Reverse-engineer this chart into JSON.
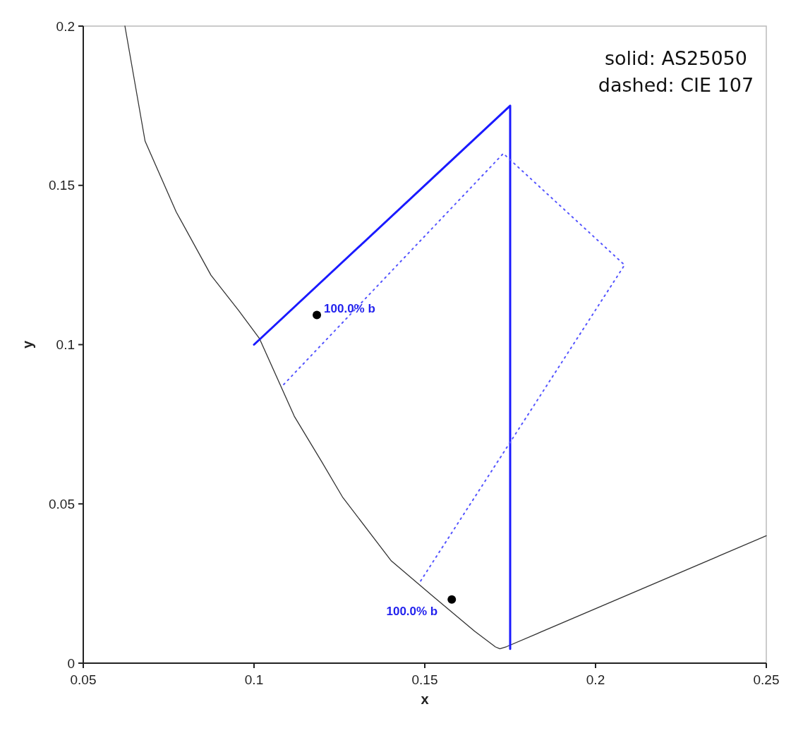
{
  "chart_data": {
    "type": "line",
    "xlabel": "x",
    "ylabel": "y",
    "xlim": [
      0.05,
      0.25
    ],
    "xticks": [
      0.05,
      0.1,
      0.15,
      0.2,
      0.25
    ],
    "ylim": [
      0,
      0.2
    ],
    "yticks": [
      0,
      0.05,
      0.1,
      0.15,
      0.2
    ],
    "grid": false,
    "series": [
      {
        "color": "#333333",
        "line_style": "solid",
        "x": [
          0.0622,
          0.0681,
          0.0772,
          0.0874,
          0.0955,
          0.1016,
          0.1118,
          0.1199,
          0.126,
          0.1402,
          0.1524,
          0.1646,
          0.1707,
          0.172,
          0.174,
          0.25
        ],
        "values": [
          0.2,
          0.1639,
          0.1417,
          0.1218,
          0.1107,
          0.1019,
          0.0775,
          0.0631,
          0.052,
          0.0321,
          0.021,
          0.01,
          0.0051,
          0.0045,
          0.0052,
          0.04
        ]
      },
      {
        "color": "#1a1aff",
        "line_style": "solid",
        "x": [
          0.1,
          0.175,
          0.175
        ],
        "values": [
          0.1,
          0.175,
          0.0045
        ]
      },
      {
        "color": "#5555ff",
        "line_style": "dotted",
        "x": [
          0.1087,
          0.173,
          0.2085,
          0.1486
        ],
        "values": [
          0.0875,
          0.16,
          0.125,
          0.0255
        ]
      },
      {
        "type": "scatter",
        "color": "#000000",
        "marker": "circle",
        "x": [
          0.1184,
          0.1579
        ],
        "values": [
          0.1093,
          0.02
        ]
      }
    ],
    "annotations": [
      {
        "text": "100.0% b",
        "x": 0.1184,
        "y": 0.1093
      },
      {
        "text": "100.0% b",
        "x": 0.1579,
        "y": 0.02
      },
      "solid: AS25050",
      "dashed: CIE 107"
    ]
  }
}
